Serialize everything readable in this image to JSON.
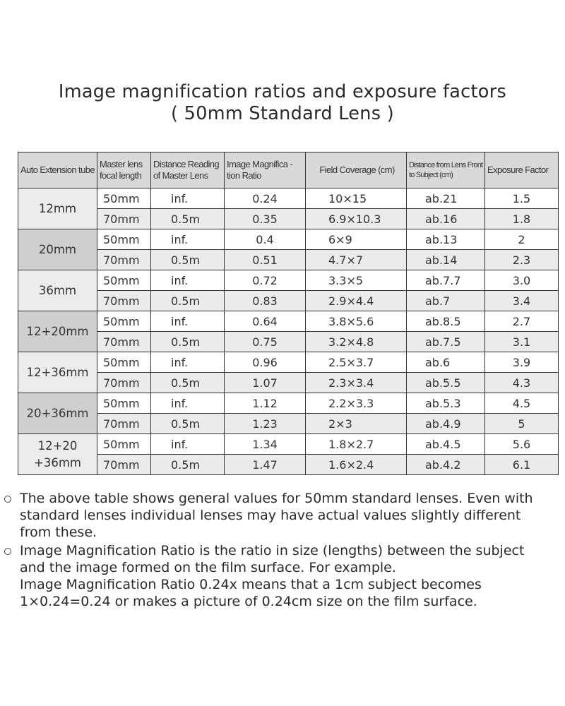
{
  "title": {
    "line1": "Image magnification ratios and exposure factors",
    "line2": "( 50mm Standard Lens )"
  },
  "table": {
    "headers": [
      "Auto Extension tube",
      "Master lens focal length",
      "Distance Reading of Master Lens",
      "Image Magnifica -tion Ratio",
      "Field Coverage (cm)",
      "Distance from Lens Front to Subject (cm)",
      "Exposure Factor"
    ],
    "groups": [
      {
        "tube": "12mm",
        "shade": "light",
        "rows": [
          [
            "50mm",
            "inf.",
            "0.24",
            "10×15",
            "ab.21",
            "1.5"
          ],
          [
            "70mm",
            "0.5m",
            "0.35",
            "6.9×10.3",
            "ab.16",
            "1.8"
          ]
        ]
      },
      {
        "tube": "20mm",
        "shade": "dark",
        "rows": [
          [
            "50mm",
            "inf.",
            "0.4",
            "6×9",
            "ab.13",
            "2"
          ],
          [
            "70mm",
            "0.5m",
            "0.51",
            "4.7×7",
            "ab.14",
            "2.3"
          ]
        ]
      },
      {
        "tube": "36mm",
        "shade": "light",
        "rows": [
          [
            "50mm",
            "inf.",
            "0.72",
            "3.3×5",
            "ab.7.7",
            "3.0"
          ],
          [
            "70mm",
            "0.5m",
            "0.83",
            "2.9×4.4",
            "ab.7",
            "3.4"
          ]
        ]
      },
      {
        "tube": "12+20mm",
        "shade": "dark",
        "rows": [
          [
            "50mm",
            "inf.",
            "0.64",
            "3.8×5.6",
            "ab.8.5",
            "2.7"
          ],
          [
            "70mm",
            "0.5m",
            "0.75",
            "3.2×4.8",
            "ab.7.5",
            "3.1"
          ]
        ]
      },
      {
        "tube": "12+36mm",
        "shade": "light",
        "rows": [
          [
            "50mm",
            "inf.",
            "0.96",
            "2.5×3.7",
            "ab.6",
            "3.9"
          ],
          [
            "70mm",
            "0.5m",
            "1.07",
            "2.3×3.4",
            "ab.5.5",
            "4.3"
          ]
        ]
      },
      {
        "tube": "20+36mm",
        "shade": "dark",
        "rows": [
          [
            "50mm",
            "inf.",
            "1.12",
            "2.2×3.3",
            "ab.5.3",
            "4.5"
          ],
          [
            "70mm",
            "0.5m",
            "1.23",
            "2×3",
            "ab.4.9",
            "5"
          ]
        ]
      },
      {
        "tube": "12+20 +36mm",
        "shade": "light",
        "rows": [
          [
            "50mm",
            "inf.",
            "1.34",
            "1.8×2.7",
            "ab.4.5",
            "5.6"
          ],
          [
            "70mm",
            "0.5m",
            "1.47",
            "1.6×2.4",
            "ab.4.2",
            "6.1"
          ]
        ]
      }
    ]
  },
  "notes": [
    {
      "lines": [
        "The above table shows general values for 50mm standard lenses. Even with",
        "standard lenses individual lenses may have actual values slightly different",
        "from these."
      ]
    },
    {
      "lines": [
        "Image Magnification Ratio is the ratio in size (lengths) between the subject",
        "and the image formed on the film surface. For example.",
        "Image Magnification Ratio 0.24x means that a 1cm subject becomes",
        "1×0.24=0.24 or makes a picture of 0.24cm size on the film surface."
      ]
    }
  ]
}
